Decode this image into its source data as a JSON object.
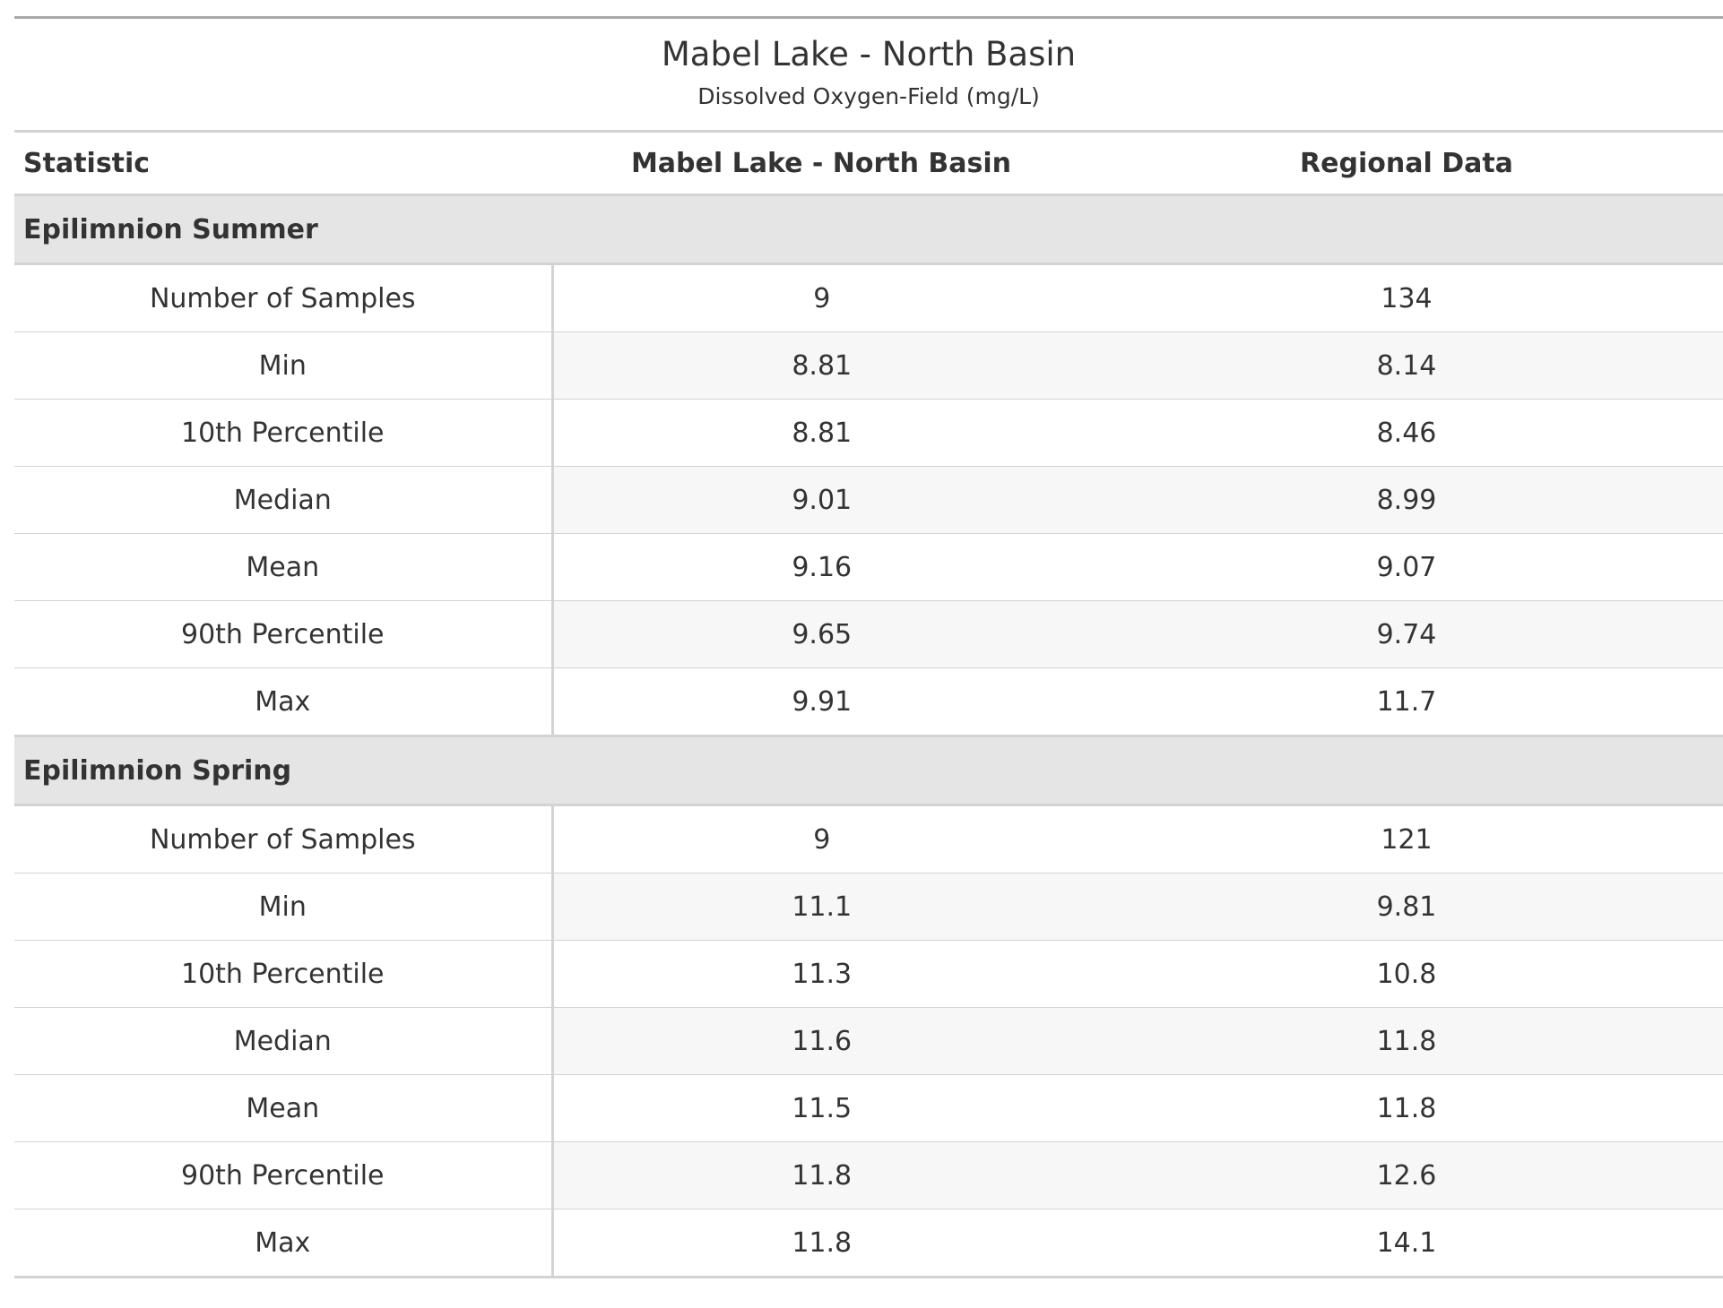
{
  "table": {
    "title": "Mabel Lake - North Basin",
    "subtitle": "Dissolved Oxygen-Field (mg/L)",
    "columns": [
      "Statistic",
      "Mabel Lake - North Basin",
      "Regional Data"
    ],
    "groups": [
      {
        "label": "Epilimnion Summer",
        "rows": [
          {
            "stat": "Number of Samples",
            "site": "9",
            "regional": "134"
          },
          {
            "stat": "Min",
            "site": "8.81",
            "regional": "8.14"
          },
          {
            "stat": "10th Percentile",
            "site": "8.81",
            "regional": "8.46"
          },
          {
            "stat": "Median",
            "site": "9.01",
            "regional": "8.99"
          },
          {
            "stat": "Mean",
            "site": "9.16",
            "regional": "9.07"
          },
          {
            "stat": "90th Percentile",
            "site": "9.65",
            "regional": "9.74"
          },
          {
            "stat": "Max",
            "site": "9.91",
            "regional": "11.7"
          }
        ]
      },
      {
        "label": "Epilimnion Spring",
        "rows": [
          {
            "stat": "Number of Samples",
            "site": "9",
            "regional": "121"
          },
          {
            "stat": "Min",
            "site": "11.1",
            "regional": "9.81"
          },
          {
            "stat": "10th Percentile",
            "site": "11.3",
            "regional": "10.8"
          },
          {
            "stat": "Median",
            "site": "11.6",
            "regional": "11.8"
          },
          {
            "stat": "Mean",
            "site": "11.5",
            "regional": "11.8"
          },
          {
            "stat": "90th Percentile",
            "site": "11.8",
            "regional": "12.6"
          },
          {
            "stat": "Max",
            "site": "11.8",
            "regional": "14.1"
          }
        ]
      }
    ]
  }
}
